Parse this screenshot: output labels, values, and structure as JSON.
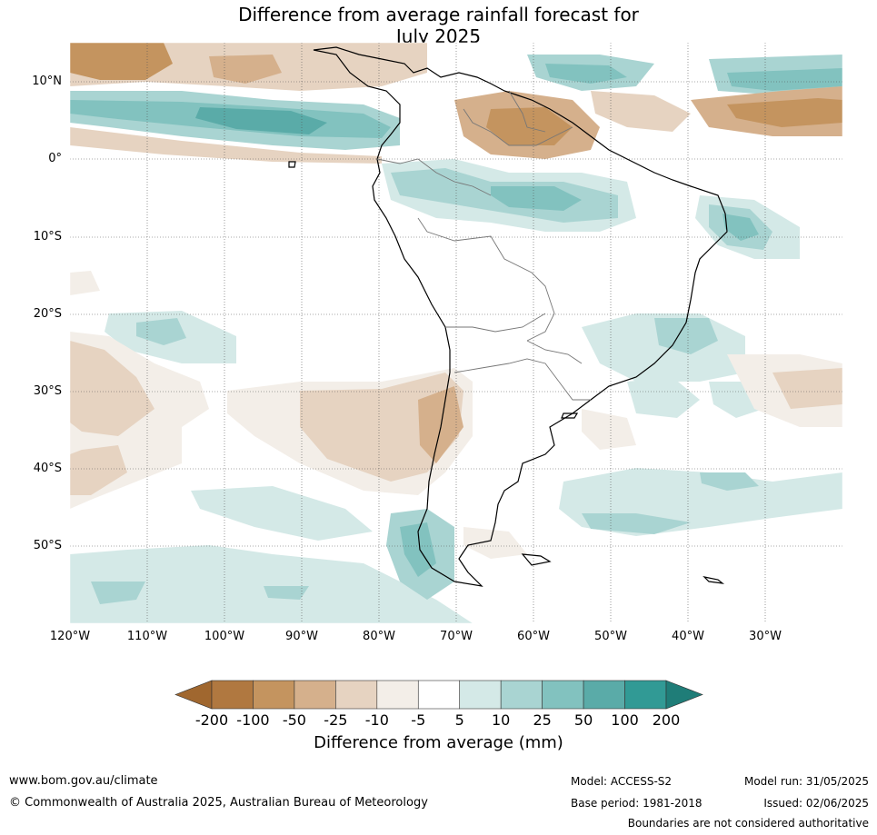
{
  "title_line1": "Difference from average rainfall forecast for",
  "title_line2": "July 2025",
  "lat_labels": [
    "10°N",
    "0°",
    "10°S",
    "20°S",
    "30°S",
    "40°S",
    "50°S"
  ],
  "lon_labels": [
    "120°W",
    "110°W",
    "100°W",
    "90°W",
    "80°W",
    "70°W",
    "60°W",
    "50°W",
    "40°W",
    "30°W"
  ],
  "colorbar": {
    "ticks": [
      "-200",
      "-100",
      "-50",
      "-25",
      "-10",
      "-5",
      "5",
      "10",
      "25",
      "50",
      "100",
      "200"
    ],
    "colors": [
      "#a0672f",
      "#b07840",
      "#c4945f",
      "#d5b08c",
      "#e6d3c1",
      "#f3eee8",
      "#ffffff",
      "#d4e9e7",
      "#a9d4d2",
      "#82c2bf",
      "#5aaba8",
      "#319a95",
      "#1f7d78"
    ],
    "label": "Difference from average (mm)"
  },
  "footer": {
    "url": "www.bom.gov.au/climate",
    "copyright": "© Commonwealth of Australia 2025, Australian Bureau of Meteorology",
    "model": "Model: ACCESS-S2",
    "model_run": "Model run: 31/05/2025",
    "base_period": "Base period: 1981-2018",
    "issued": "Issued: 02/06/2025",
    "disclaimer": "Boundaries are not considered authoritative"
  }
}
